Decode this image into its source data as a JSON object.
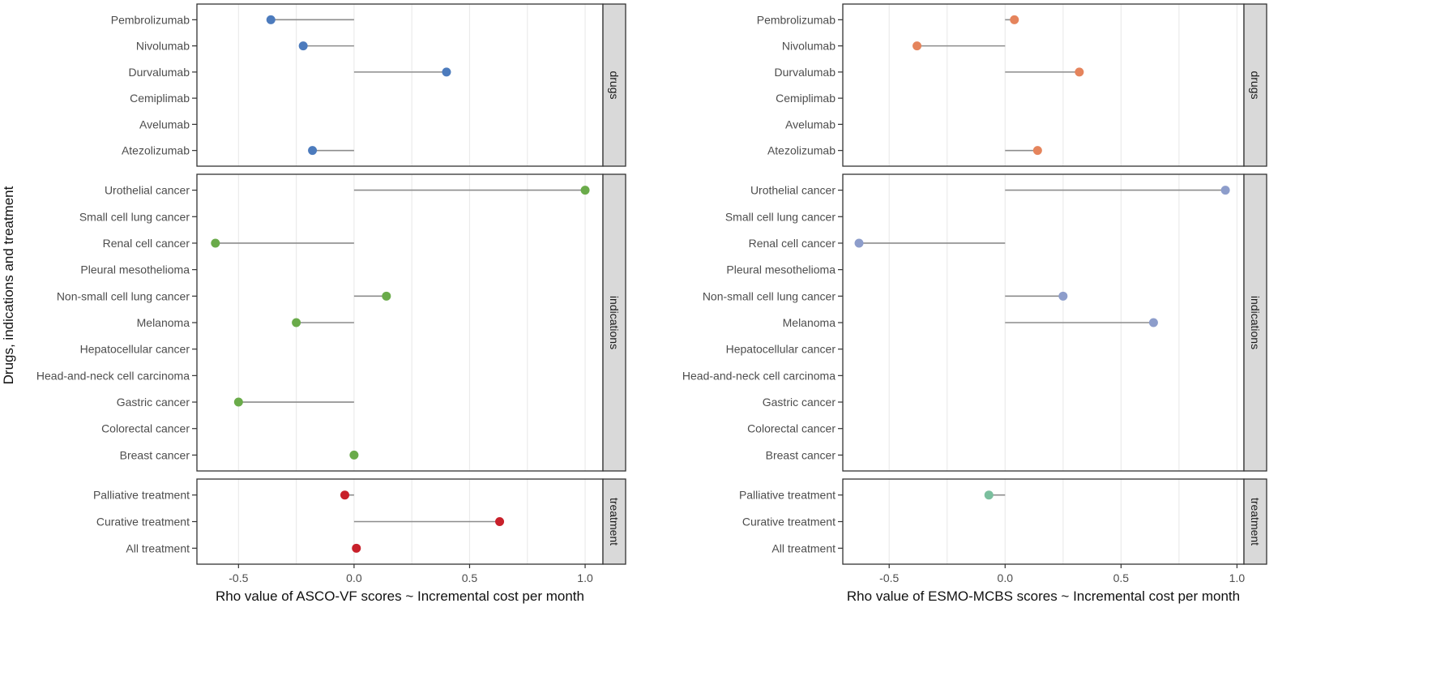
{
  "ylabel": "Drugs, indications and treatment",
  "chart_data": [
    {
      "type": "lollipop",
      "xlabel": "Rho value of ASCO-VF scores ~ Incremental cost per month",
      "xlim": [
        -0.68,
        1.077
      ],
      "xticks": [
        -0.5,
        0.0,
        0.5,
        1.0
      ],
      "xtick_labels": [
        "-0.5",
        "0.0",
        "0.5",
        "1.0"
      ],
      "grid": true,
      "facets": [
        {
          "name": "drugs",
          "color": "#4c7bbd",
          "categories": [
            "Pembrolizumab",
            "Nivolumab",
            "Durvalumab",
            "Cemiplimab",
            "Avelumab",
            "Atezolizumab"
          ],
          "values": [
            -0.36,
            -0.22,
            0.4,
            null,
            null,
            -0.18
          ]
        },
        {
          "name": "indications",
          "color": "#6aab4a",
          "categories": [
            "Urothelial cancer",
            "Small cell lung cancer",
            "Renal cell cancer",
            "Pleural mesothelioma",
            "Non-small cell lung cancer",
            "Melanoma",
            "Hepatocellular cancer",
            "Head-and-neck cell carcinoma",
            "Gastric cancer",
            "Colorectal cancer",
            "Breast cancer"
          ],
          "values": [
            1.0,
            null,
            -0.6,
            null,
            0.14,
            -0.25,
            null,
            null,
            -0.5,
            null,
            0.0
          ]
        },
        {
          "name": "treatment",
          "color": "#c8202a",
          "categories": [
            "Palliative treatment",
            "Curative treatment",
            "All treatment"
          ],
          "values": [
            -0.04,
            0.63,
            0.01
          ]
        }
      ]
    },
    {
      "type": "lollipop",
      "xlabel": "Rho value of ESMO-MCBS scores ~ Incremental cost per month",
      "xlim": [
        -0.7,
        1.03
      ],
      "xticks": [
        -0.5,
        0.0,
        0.5,
        1.0
      ],
      "xtick_labels": [
        "-0.5",
        "0.0",
        "0.5",
        "1.0"
      ],
      "grid": true,
      "facets": [
        {
          "name": "drugs",
          "color": "#e5845c",
          "categories": [
            "Pembrolizumab",
            "Nivolumab",
            "Durvalumab",
            "Cemiplimab",
            "Avelumab",
            "Atezolizumab"
          ],
          "values": [
            0.04,
            -0.38,
            0.32,
            null,
            null,
            0.14
          ]
        },
        {
          "name": "indications",
          "color": "#8d9dcb",
          "categories": [
            "Urothelial cancer",
            "Small cell lung cancer",
            "Renal cell cancer",
            "Pleural mesothelioma",
            "Non-small cell lung cancer",
            "Melanoma",
            "Hepatocellular cancer",
            "Head-and-neck cell carcinoma",
            "Gastric cancer",
            "Colorectal cancer",
            "Breast cancer"
          ],
          "values": [
            0.95,
            null,
            -0.63,
            null,
            0.25,
            0.64,
            null,
            null,
            null,
            null,
            null
          ]
        },
        {
          "name": "treatment",
          "color": "#7bbf9e",
          "categories": [
            "Palliative treatment",
            "Curative treatment",
            "All treatment"
          ],
          "values": [
            -0.07,
            null,
            null
          ]
        }
      ]
    }
  ]
}
